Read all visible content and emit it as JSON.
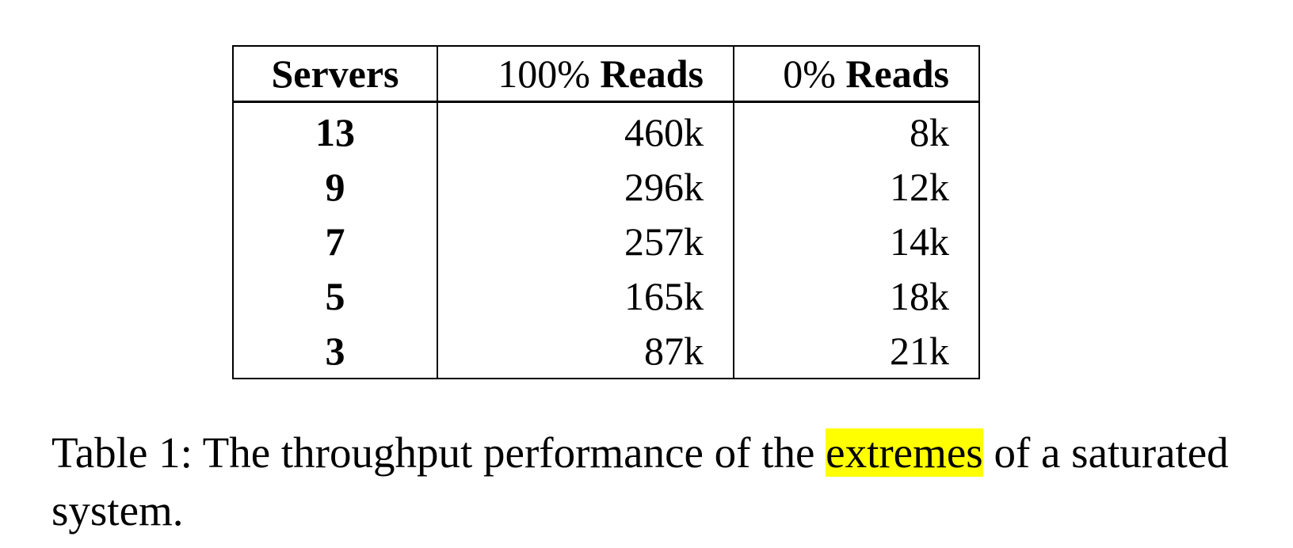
{
  "table": {
    "headers": [
      {
        "plain": "",
        "bold": "Servers"
      },
      {
        "plain": "100% ",
        "bold": "Reads"
      },
      {
        "plain": "0% ",
        "bold": "Reads"
      }
    ],
    "rows": [
      {
        "servers": "13",
        "reads_100": "460k",
        "reads_0": "8k"
      },
      {
        "servers": "9",
        "reads_100": "296k",
        "reads_0": "12k"
      },
      {
        "servers": "7",
        "reads_100": "257k",
        "reads_0": "14k"
      },
      {
        "servers": "5",
        "reads_100": "165k",
        "reads_0": "18k"
      },
      {
        "servers": "3",
        "reads_100": "87k",
        "reads_0": "21k"
      }
    ]
  },
  "caption": {
    "before": "Table 1: The throughput performance of the ",
    "highlight": "extremes",
    "after": " of a saturated system.",
    "highlight_color": "#ffff00"
  }
}
